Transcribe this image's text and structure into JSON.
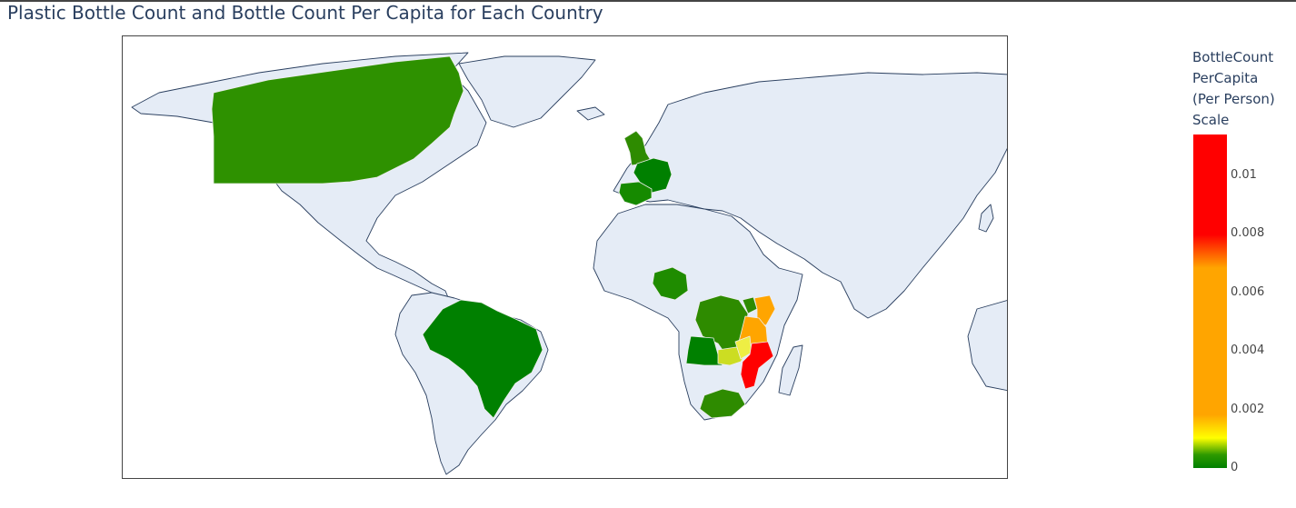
{
  "title": "Plastic Bottle Count and Bottle Count Per Capita for Each Country",
  "legend": {
    "title_lines": [
      "BottleCount",
      "PerCapita",
      "(Per Person)",
      "Scale"
    ],
    "ticks": [
      {
        "label": "0.01",
        "value": 0.01
      },
      {
        "label": "0.008",
        "value": 0.008
      },
      {
        "label": "0.006",
        "value": 0.006
      },
      {
        "label": "0.004",
        "value": 0.004
      },
      {
        "label": "0.002",
        "value": 0.002
      },
      {
        "label": "0",
        "value": 0
      }
    ],
    "range": [
      0,
      0.0114
    ],
    "colorscale": [
      {
        "stop": 0,
        "color": "#008000"
      },
      {
        "stop": 0.04,
        "color": "#2e9a00"
      },
      {
        "stop": 0.09,
        "color": "#ffff00"
      },
      {
        "stop": 0.16,
        "color": "#ffa500"
      },
      {
        "stop": 0.6,
        "color": "#ffa500"
      },
      {
        "stop": 0.7,
        "color": "#ff0000"
      },
      {
        "stop": 1,
        "color": "#ff0000"
      }
    ]
  },
  "map": {
    "land_color": "#e5ecf6",
    "border_color": "#2a3f5f",
    "countries": [
      {
        "name": "Canada",
        "color": "#2e9100"
      },
      {
        "name": "Brazil",
        "color": "#008000"
      },
      {
        "name": "United Kingdom",
        "color": "#2e8b00"
      },
      {
        "name": "France",
        "color": "#008000"
      },
      {
        "name": "Spain",
        "color": "#168a00"
      },
      {
        "name": "Nigeria",
        "color": "#1f8c00"
      },
      {
        "name": "Democratic Republic of the Congo",
        "color": "#2e8b00"
      },
      {
        "name": "Uganda",
        "color": "#2e8b00"
      },
      {
        "name": "Kenya",
        "color": "#ffa500"
      },
      {
        "name": "Tanzania",
        "color": "#ffa500"
      },
      {
        "name": "Angola",
        "color": "#008000"
      },
      {
        "name": "Zambia",
        "color": "#ccdd22"
      },
      {
        "name": "Malawi",
        "color": "#eeee44"
      },
      {
        "name": "Mozambique",
        "color": "#ff0000"
      },
      {
        "name": "South Africa",
        "color": "#2e8b00"
      }
    ]
  }
}
